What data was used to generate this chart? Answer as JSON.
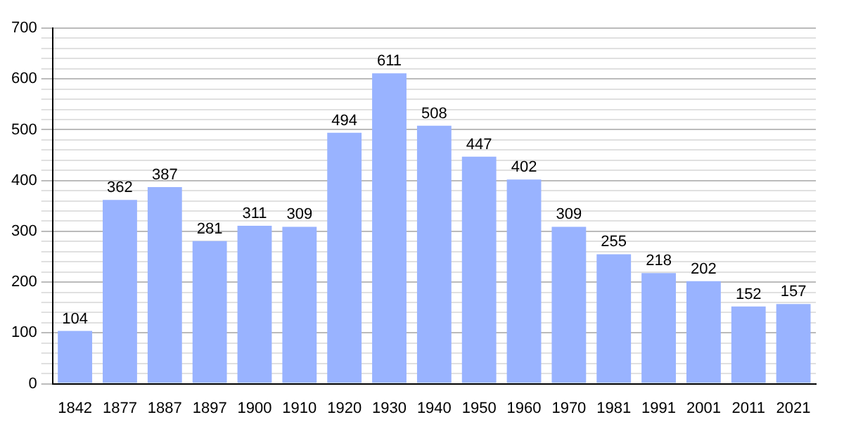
{
  "chart_data": {
    "type": "bar",
    "categories": [
      "1842",
      "1877",
      "1887",
      "1897",
      "1900",
      "1910",
      "1920",
      "1930",
      "1940",
      "1950",
      "1960",
      "1970",
      "1981",
      "1991",
      "2001",
      "2011",
      "2021"
    ],
    "values": [
      104,
      362,
      387,
      281,
      311,
      309,
      494,
      611,
      508,
      447,
      402,
      309,
      255,
      218,
      202,
      152,
      157
    ],
    "color": "#99b3ff",
    "ylim": [
      0,
      700
    ],
    "yticks": [
      0,
      {
        "value": 20,
        "label": null
      },
      {
        "value": 40,
        "label": null
      },
      {
        "value": 60,
        "label": null
      },
      {
        "value": 80,
        "label": null
      },
      100,
      {
        "value": 120,
        "label": null
      },
      {
        "value": 140,
        "label": null
      },
      {
        "value": 160,
        "label": null
      },
      {
        "value": 180,
        "label": null
      },
      200,
      {
        "value": 220,
        "label": null
      },
      {
        "value": 240,
        "label": null
      },
      {
        "value": 260,
        "label": null
      },
      {
        "value": 280,
        "label": null
      },
      300,
      {
        "value": 320,
        "label": null
      },
      {
        "value": 340,
        "label": null
      },
      {
        "value": 360,
        "label": null
      },
      {
        "value": 380,
        "label": null
      },
      400,
      {
        "value": 420,
        "label": null
      },
      {
        "value": 440,
        "label": null
      },
      {
        "value": 460,
        "label": null
      },
      {
        "value": 480,
        "label": null
      },
      500,
      {
        "value": 520,
        "label": null
      },
      {
        "value": 540,
        "label": null
      },
      {
        "value": 560,
        "label": null
      },
      {
        "value": 580,
        "label": null
      },
      600,
      {
        "value": 620,
        "label": null
      },
      {
        "value": 640,
        "label": null
      },
      {
        "value": 660,
        "label": null
      },
      {
        "value": 680,
        "label": null
      },
      700
    ],
    "grid": "y",
    "data_labels": true
  }
}
